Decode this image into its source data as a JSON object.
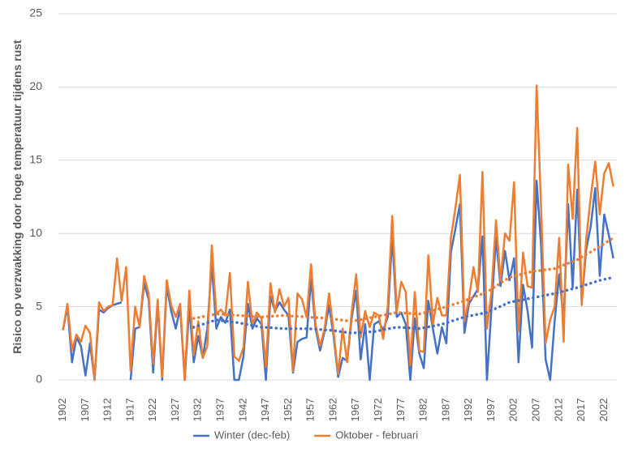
{
  "chart_data": {
    "type": "line",
    "ylabel": "Risico op verzwakking door hoge temperatuur tijdens rust",
    "x": [
      1902,
      1903,
      1904,
      1905,
      1906,
      1907,
      1908,
      1909,
      1910,
      1911,
      1912,
      1913,
      1914,
      1915,
      1916,
      1917,
      1918,
      1919,
      1920,
      1921,
      1922,
      1923,
      1924,
      1925,
      1926,
      1927,
      1928,
      1929,
      1930,
      1931,
      1932,
      1933,
      1934,
      1935,
      1936,
      1937,
      1938,
      1939,
      1940,
      1941,
      1942,
      1943,
      1944,
      1945,
      1946,
      1947,
      1948,
      1949,
      1950,
      1951,
      1952,
      1953,
      1954,
      1955,
      1956,
      1957,
      1958,
      1959,
      1960,
      1961,
      1962,
      1963,
      1964,
      1965,
      1966,
      1967,
      1968,
      1969,
      1970,
      1971,
      1972,
      1973,
      1974,
      1975,
      1976,
      1977,
      1978,
      1979,
      1980,
      1981,
      1982,
      1983,
      1984,
      1985,
      1986,
      1987,
      1988,
      1989,
      1990,
      1991,
      1992,
      1993,
      1994,
      1995,
      1996,
      1997,
      1998,
      1999,
      2000,
      2001,
      2002,
      2003,
      2004,
      2005,
      2006,
      2007,
      2008,
      2009,
      2010,
      2011,
      2012,
      2013,
      2014,
      2015,
      2016,
      2017,
      2018,
      2019,
      2020,
      2021,
      2022,
      2023,
      2024
    ],
    "xlim": [
      1901,
      2024.8
    ],
    "xticks": [
      1902,
      1907,
      1912,
      1917,
      1922,
      1927,
      1932,
      1937,
      1942,
      1947,
      1952,
      1957,
      1962,
      1967,
      1972,
      1977,
      1982,
      1987,
      1992,
      1997,
      2002,
      2007,
      2012,
      2017,
      2022
    ],
    "ylim": [
      0,
      25
    ],
    "yticks": [
      0,
      5,
      10,
      15,
      20,
      25
    ],
    "grid": true,
    "legend": "bottom",
    "series": [
      {
        "name": "Winter (dec-feb)",
        "color": "#4472c4",
        "values": [
          3.4,
          5.0,
          1.2,
          2.9,
          2.3,
          0.3,
          2.5,
          0.0,
          4.8,
          4.6,
          4.9,
          5.1,
          5.2,
          5.3,
          null,
          0.0,
          3.5,
          3.6,
          6.6,
          5.5,
          0.5,
          5.2,
          0.0,
          6.4,
          4.7,
          3.5,
          4.9,
          0.0,
          5.0,
          1.2,
          3.0,
          1.5,
          3.5,
          7.9,
          3.5,
          4.3,
          3.9,
          4.8,
          0.0,
          0.0,
          1.6,
          5.2,
          3.5,
          4.2,
          3.8,
          0.0,
          5.7,
          4.7,
          5.3,
          4.8,
          4.4,
          0.5,
          2.6,
          2.8,
          2.9,
          6.9,
          3.5,
          2.0,
          3.3,
          5.1,
          3.0,
          0.2,
          1.5,
          1.3,
          4.2,
          6.1,
          1.4,
          3.8,
          0.0,
          3.8,
          4.0,
          3.4,
          4.3,
          9.8,
          4.3,
          4.6,
          3.8,
          0.0,
          4.2,
          1.8,
          0.8,
          5.4,
          3.5,
          1.8,
          3.6,
          2.5,
          8.7,
          10.3,
          12.0,
          3.2,
          5.2,
          5.7,
          6.2,
          9.8,
          0.0,
          4.9,
          9.7,
          6.4,
          8.8,
          6.8,
          8.3,
          1.2,
          6.5,
          4.7,
          2.2,
          13.6,
          9.2,
          1.4,
          0.0,
          4.0,
          7.2,
          4.1,
          12.0,
          6.3,
          13.0,
          5.3,
          8.9,
          10.5,
          13.1,
          7.1,
          11.3,
          9.9,
          8.3
        ]
      },
      {
        "name": "Oktober - februari",
        "color": "#ed7d31",
        "values": [
          3.4,
          5.2,
          2.0,
          3.1,
          2.6,
          3.7,
          3.2,
          0.0,
          5.3,
          4.7,
          5.0,
          5.1,
          8.3,
          5.4,
          7.7,
          0.6,
          5.0,
          3.6,
          7.1,
          5.9,
          1.1,
          5.5,
          0.2,
          6.8,
          5.1,
          4.3,
          5.2,
          0.0,
          6.1,
          1.7,
          4.0,
          1.5,
          2.3,
          9.2,
          4.5,
          4.8,
          4.4,
          7.3,
          1.6,
          1.3,
          2.2,
          6.7,
          3.8,
          4.6,
          4.2,
          0.9,
          6.6,
          4.6,
          6.2,
          5.0,
          5.6,
          0.6,
          5.9,
          5.5,
          4.3,
          7.9,
          3.8,
          2.3,
          3.5,
          5.9,
          3.3,
          0.4,
          3.5,
          1.2,
          4.6,
          7.2,
          2.9,
          4.7,
          3.6,
          4.6,
          4.4,
          2.8,
          5.0,
          11.2,
          4.7,
          6.7,
          6.0,
          1.0,
          6.0,
          2.0,
          1.9,
          8.5,
          3.8,
          5.6,
          4.4,
          4.4,
          9.7,
          11.7,
          14.0,
          4.0,
          5.5,
          7.7,
          6.0,
          14.2,
          3.5,
          6.0,
          10.9,
          6.8,
          10.0,
          9.5,
          13.5,
          3.3,
          8.7,
          6.4,
          6.3,
          20.1,
          11.8,
          2.5,
          4.1,
          5.0,
          9.7,
          2.6,
          14.7,
          11.0,
          17.2,
          5.1,
          9.6,
          12.5,
          14.9,
          11.3,
          14.1,
          14.8,
          13.2
        ]
      },
      {
        "color": "#4472c4",
        "dash": "dotted",
        "x": [
          1931,
          1936,
          1941,
          1946,
          1951,
          1956,
          1961,
          1966,
          1971,
          1976,
          1981,
          1986,
          1991,
          1996,
          2001,
          2006,
          2011,
          2016,
          2021,
          2024
        ],
        "values": [
          3.6,
          4.1,
          3.9,
          3.6,
          3.5,
          3.5,
          3.4,
          3.2,
          3.3,
          3.6,
          3.5,
          3.8,
          4.3,
          4.6,
          5.3,
          5.6,
          5.9,
          6.3,
          6.8,
          7.0
        ]
      },
      {
        "color": "#ed7d31",
        "dash": "dotted",
        "x": [
          1931,
          1936,
          1941,
          1946,
          1951,
          1956,
          1961,
          1966,
          1971,
          1976,
          1981,
          1986,
          1991,
          1996,
          2001,
          2006,
          2011,
          2016,
          2021,
          2024
        ],
        "values": [
          4.2,
          4.5,
          4.4,
          4.3,
          4.4,
          4.3,
          4.2,
          4.0,
          4.3,
          4.6,
          4.5,
          4.9,
          5.4,
          6.0,
          7.0,
          7.4,
          7.6,
          8.2,
          9.1,
          9.7
        ]
      }
    ]
  }
}
